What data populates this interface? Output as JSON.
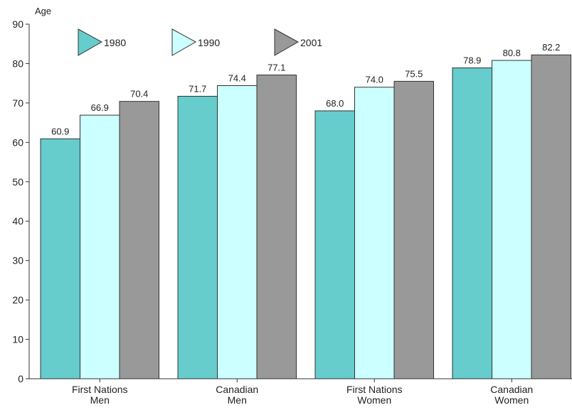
{
  "chart_data": {
    "type": "bar",
    "ylabel": "Age",
    "ylim": [
      0,
      90
    ],
    "yticks": [
      0,
      10,
      20,
      30,
      40,
      50,
      60,
      70,
      80,
      90
    ],
    "categories": [
      [
        "First Nations",
        "Men"
      ],
      [
        "Canadian",
        "Men"
      ],
      [
        "First Nations",
        "Women"
      ],
      [
        "Canadian",
        "Women"
      ]
    ],
    "series": [
      {
        "name": "1980",
        "color": "#66cccc",
        "values": [
          60.9,
          71.7,
          68.0,
          78.9
        ]
      },
      {
        "name": "1990",
        "color": "#ccffff",
        "values": [
          66.9,
          74.4,
          74.0,
          80.8
        ]
      },
      {
        "name": "2001",
        "color": "#999999",
        "values": [
          70.4,
          77.1,
          75.5,
          82.2
        ]
      }
    ],
    "value_labels": [
      [
        "60.9",
        "71.7",
        "68.0",
        "78.9"
      ],
      [
        "66.9",
        "74.4",
        "74.0",
        "80.8"
      ],
      [
        "70.4",
        "77.1",
        "75.5",
        "82.2"
      ]
    ],
    "legend_position": "top-left",
    "grid": false
  }
}
